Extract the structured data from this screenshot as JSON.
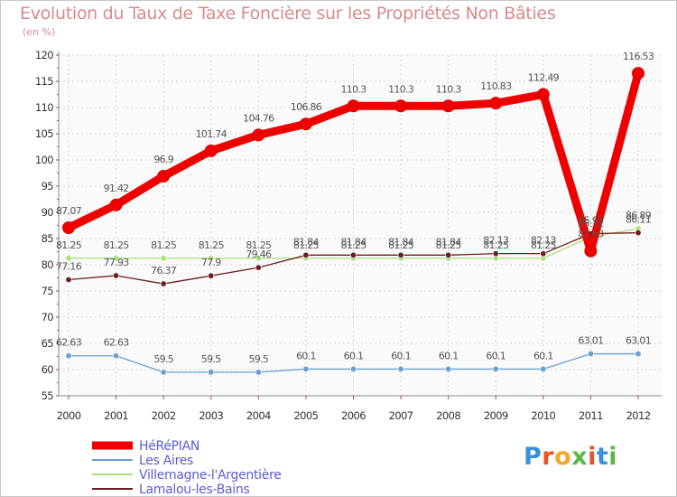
{
  "title": "Evolution du Taux de Taxe Foncière sur les Propriétés Non Bâties",
  "subtitle": "(en %)",
  "logo": {
    "text": "Proxiti",
    "letter_colors": [
      "#3a8fd6",
      "#e8542a",
      "#f2a62a",
      "#5bb84a",
      "#e8542a",
      "#3a8fd6",
      "#5bb84a"
    ]
  },
  "chart_data": {
    "type": "line",
    "title": "Evolution du Taux de Taxe Foncière sur les Propriétés Non Bâties",
    "ylabel": "(en %)",
    "xlabel": "",
    "categories": [
      "2000",
      "2001",
      "2002",
      "2003",
      "2004",
      "2005",
      "2006",
      "2007",
      "2008",
      "2009",
      "2010",
      "2011",
      "2012"
    ],
    "yticks": [
      "55",
      "60",
      "65",
      "70",
      "75",
      "80",
      "85",
      "90",
      "95",
      "100",
      "105",
      "110",
      "115",
      "120"
    ],
    "ylim": [
      55,
      120
    ],
    "grid": true,
    "legend_position": "bottom-left",
    "series": [
      {
        "name": "HéRéPIAN",
        "color": "#ee0000",
        "values": [
          87.07,
          91.42,
          96.9,
          101.74,
          104.76,
          106.86,
          110.3,
          110.3,
          110.3,
          110.83,
          112.49,
          82.63,
          116.53
        ],
        "labels": [
          "87.07",
          "91.42",
          "96.9",
          "101.74",
          "104.76",
          "106.86",
          "110.3",
          "110.3",
          "110.3",
          "110.83",
          "112.49",
          "82.63",
          "116.53"
        ]
      },
      {
        "name": "Les Aires",
        "color": "#6a9fcf",
        "values": [
          62.63,
          62.63,
          59.5,
          59.5,
          59.5,
          60.1,
          60.1,
          60.1,
          60.1,
          60.1,
          60.1,
          63.01,
          63.01
        ],
        "labels": [
          "62.63",
          "62.63",
          "59.5",
          "59.5",
          "59.5",
          "60.1",
          "60.1",
          "60.1",
          "60.1",
          "60.1",
          "60.1",
          "63.01",
          "63.01"
        ]
      },
      {
        "name": "Villemagne-l'Argentière",
        "color": "#a8e07a",
        "values": [
          81.25,
          81.25,
          81.25,
          81.25,
          81.25,
          81.25,
          81.25,
          81.25,
          81.25,
          81.25,
          81.25,
          85.31,
          86.89
        ],
        "labels": [
          "81.25",
          "81.25",
          "81.25",
          "81.25",
          "81.25",
          "81.25",
          "81.25",
          "81.25",
          "81.25",
          "81.25",
          "81.25",
          "85.31",
          "86.89"
        ]
      },
      {
        "name": "Lamalou-les-Bains",
        "color": "#6e1e1e",
        "values": [
          77.16,
          77.93,
          76.37,
          77.9,
          79.46,
          81.84,
          81.84,
          81.84,
          81.84,
          82.13,
          82.13,
          85.93,
          86.11
        ],
        "labels": [
          "77.16",
          "77.93",
          "76.37",
          "77.9",
          "79.46",
          "81.84",
          "81.84",
          "81.84",
          "81.84",
          "82.13",
          "82.13",
          "85.93",
          "86.11"
        ]
      }
    ]
  }
}
